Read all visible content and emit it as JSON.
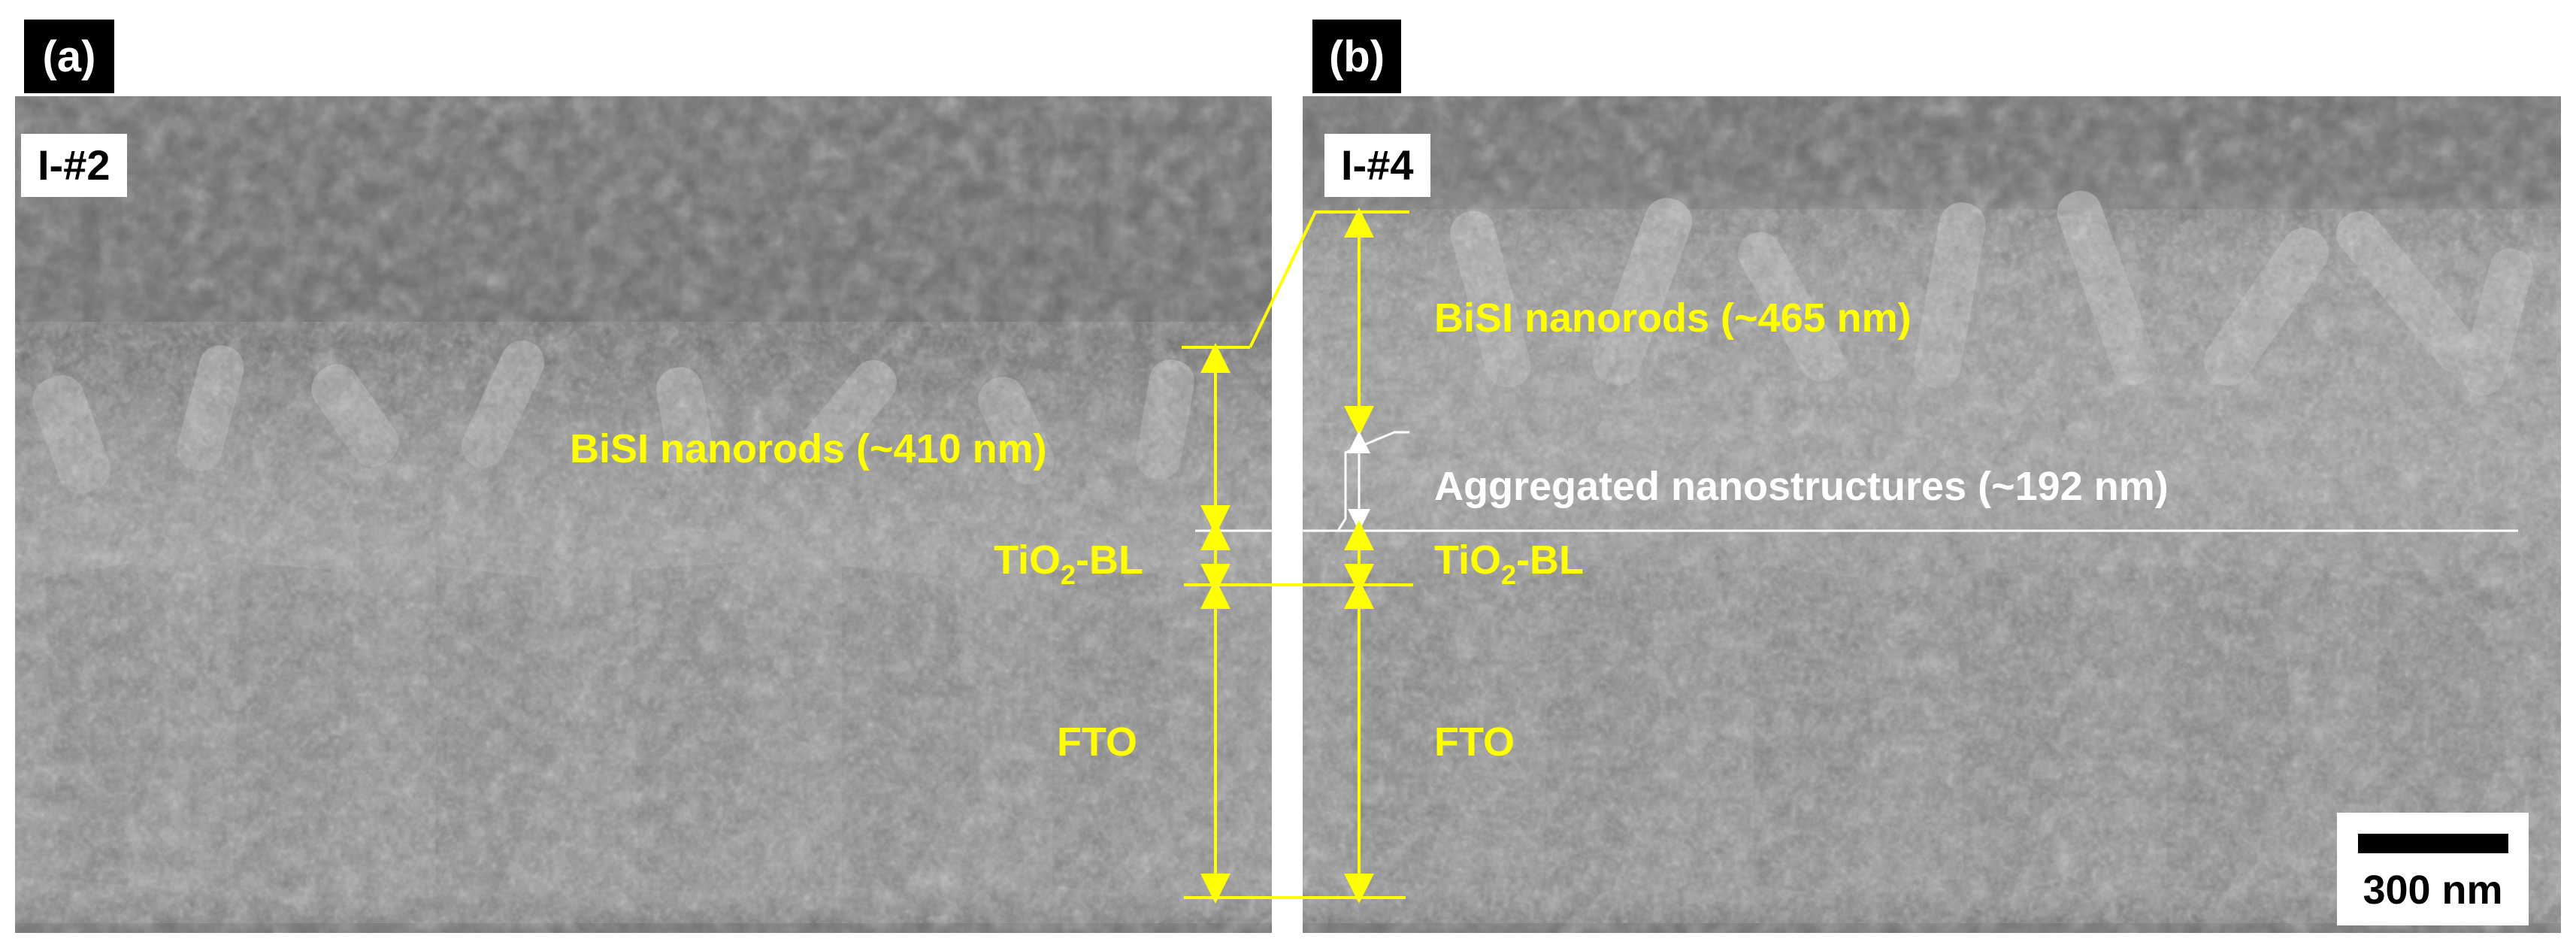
{
  "panels": [
    {
      "tag": "(a)",
      "sample": "I-#2",
      "nanorods": "BiSI nanorods  (~410 nm)",
      "tio2_main": "TiO",
      "tio2_sub": "2",
      "tio2_suffix": "-BL",
      "fto": "FTO"
    },
    {
      "tag": "(b)",
      "sample": "I-#4",
      "nanorods": "BiSI nanorods (~465 nm)",
      "aggregated": "Aggregated nanostructures (~192 nm)",
      "tio2_main": "TiO",
      "tio2_sub": "2",
      "tio2_suffix": "-BL",
      "fto": "FTO"
    }
  ],
  "scale_bar": {
    "label": "300 nm"
  },
  "colors": {
    "annotation": "#ffff00",
    "secondary": "#ffffff"
  }
}
